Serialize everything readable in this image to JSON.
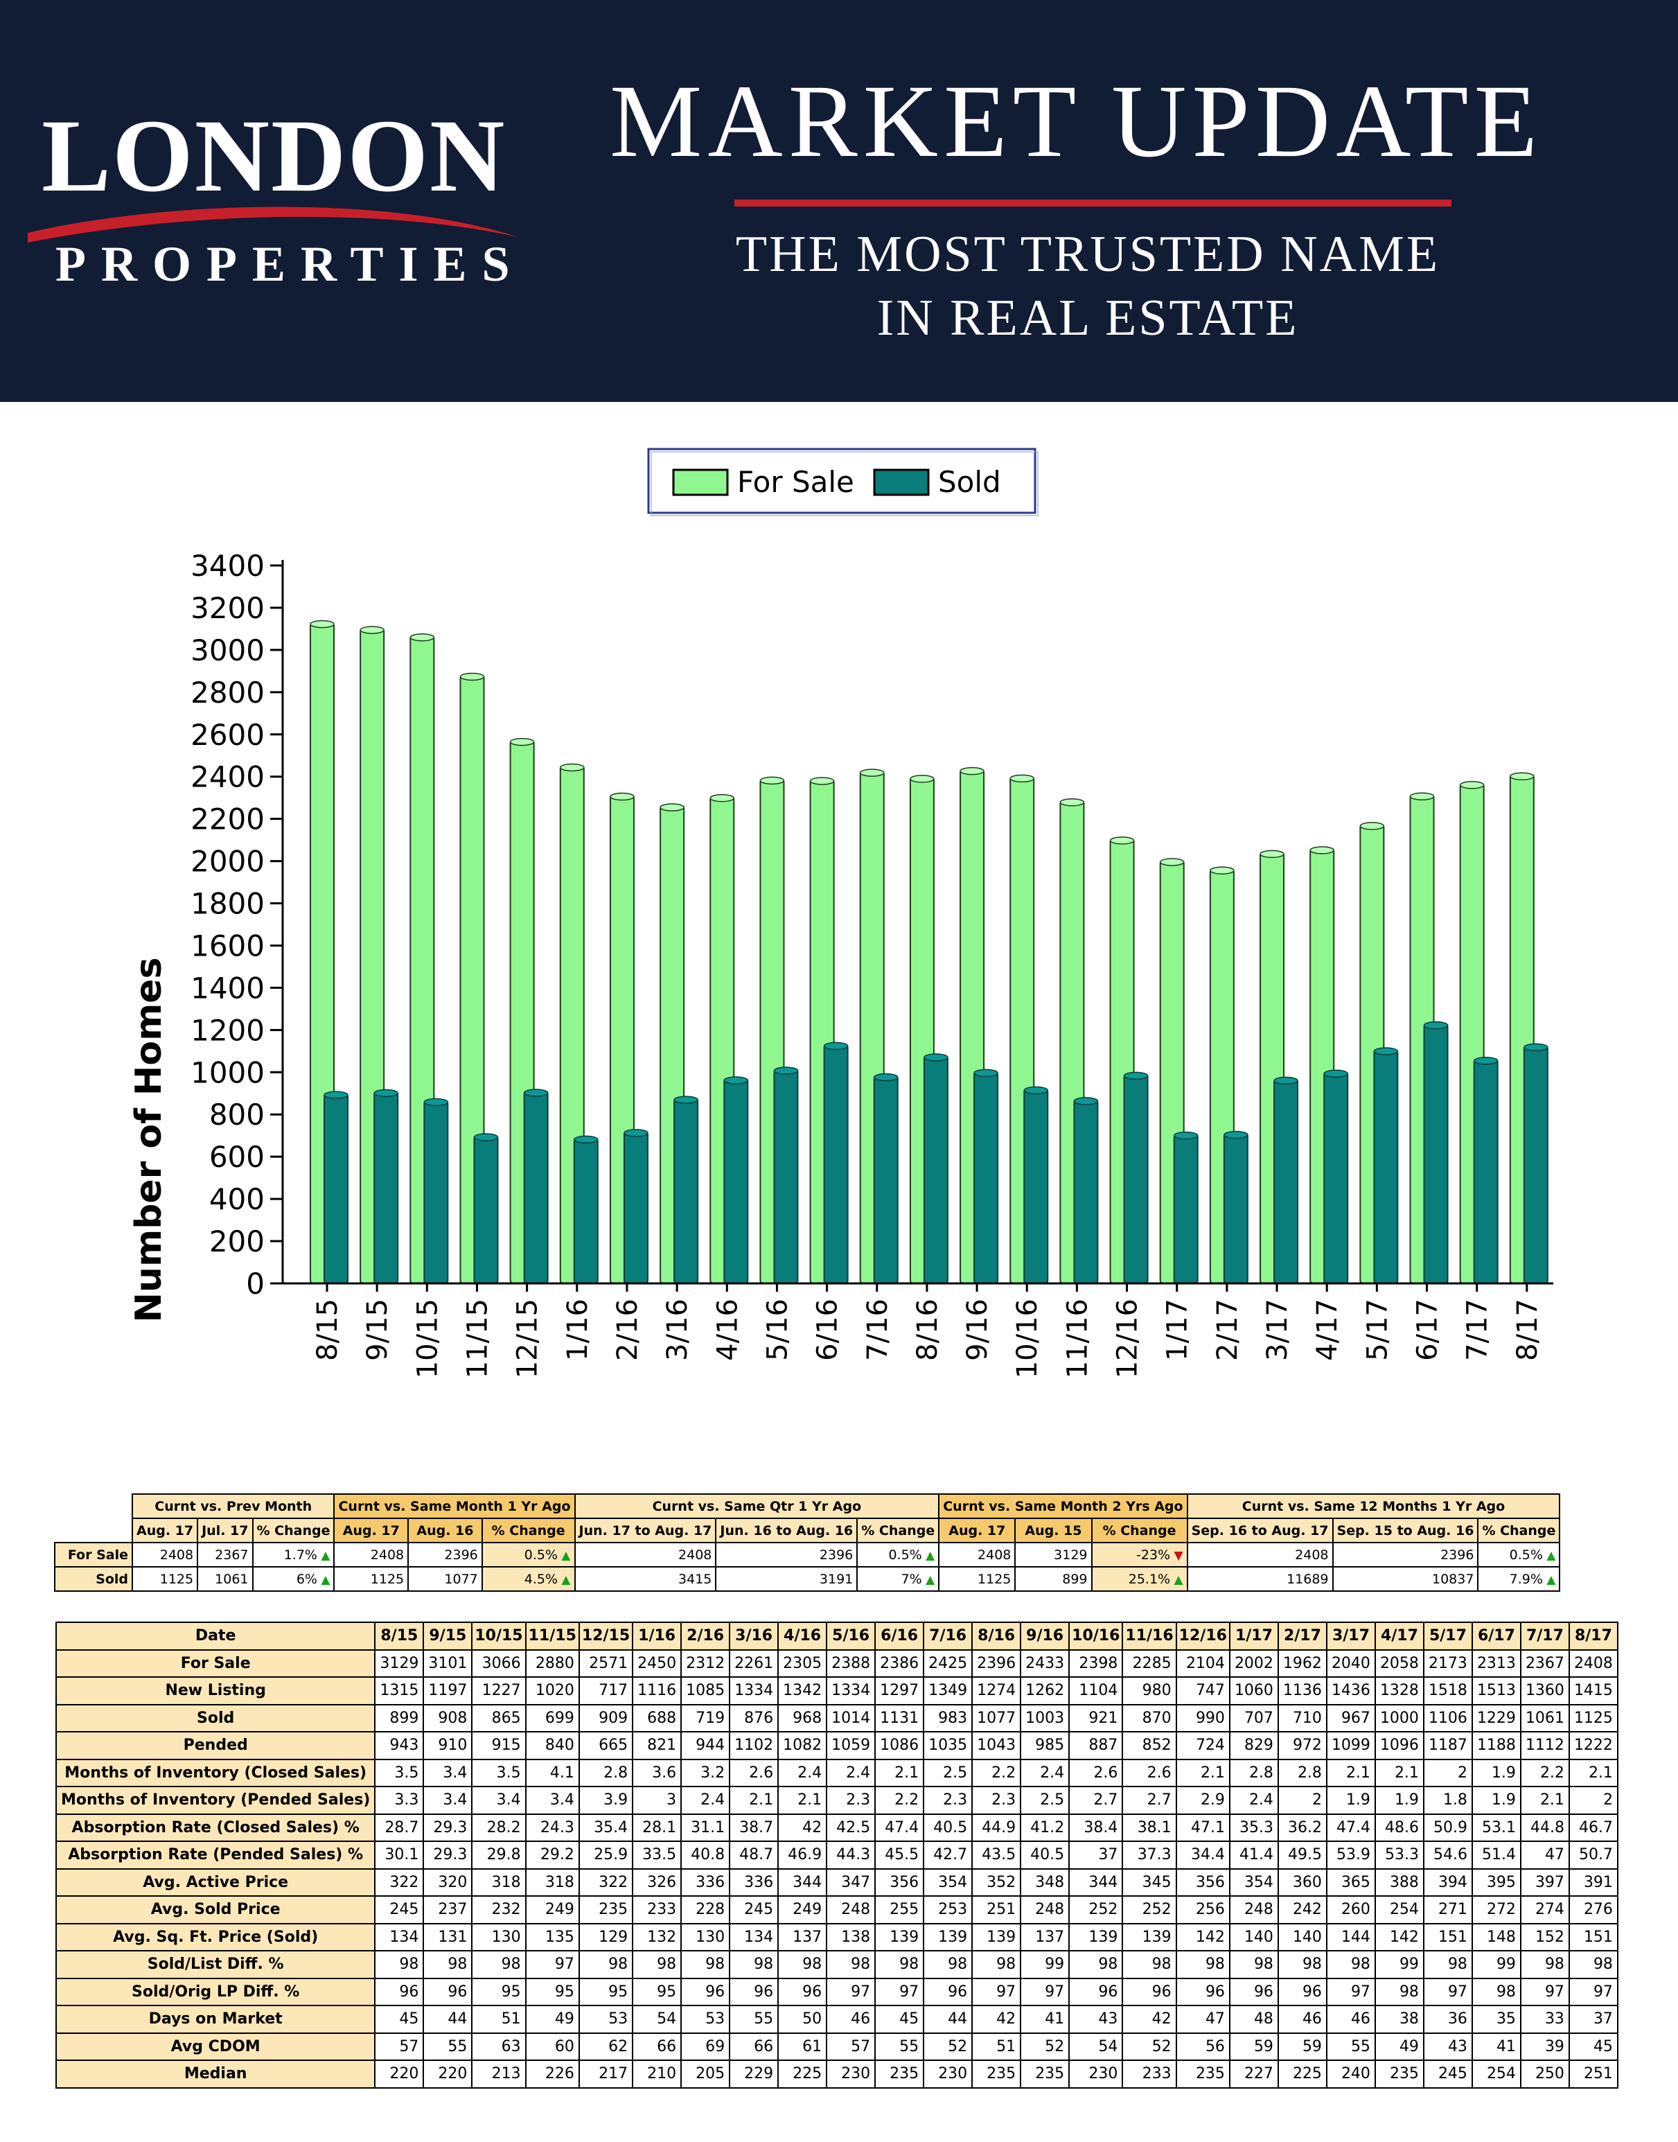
{
  "header": {
    "logo_main": "LONDON",
    "logo_sub": "PROPERTIES",
    "title": "MARKET UPDATE",
    "tagline_line1": "THE MOST TRUSTED NAME",
    "tagline_line2": "IN REAL ESTATE",
    "colors": {
      "background": "#101d35",
      "accent": "#c8202a"
    }
  },
  "chart_data": {
    "type": "bar",
    "categories": [
      "8/15",
      "9/15",
      "10/15",
      "11/15",
      "12/15",
      "1/16",
      "2/16",
      "3/16",
      "4/16",
      "5/16",
      "6/16",
      "7/16",
      "8/16",
      "9/16",
      "10/16",
      "11/16",
      "12/16",
      "1/17",
      "2/17",
      "3/17",
      "4/17",
      "5/17",
      "6/17",
      "7/17",
      "8/17"
    ],
    "series": [
      {
        "name": "For Sale",
        "color": "#90f790",
        "values": [
          3129,
          3101,
          3066,
          2880,
          2571,
          2450,
          2312,
          2261,
          2305,
          2388,
          2386,
          2425,
          2396,
          2433,
          2398,
          2285,
          2104,
          2002,
          1962,
          2040,
          2058,
          2173,
          2313,
          2367,
          2408
        ]
      },
      {
        "name": "Sold",
        "color": "#087d79",
        "values": [
          899,
          908,
          865,
          699,
          909,
          688,
          719,
          876,
          968,
          1014,
          1131,
          983,
          1077,
          1003,
          921,
          870,
          990,
          707,
          710,
          967,
          1000,
          1106,
          1229,
          1061,
          1125
        ]
      }
    ],
    "xlabel": "",
    "ylabel": "Number of Homes",
    "ylim": [
      0,
      3400
    ],
    "yticks": [
      0,
      200,
      400,
      600,
      800,
      1000,
      1200,
      1400,
      1600,
      1800,
      2000,
      2200,
      2400,
      2600,
      2800,
      3000,
      3200,
      3400
    ],
    "legend": "top-center",
    "grid": false
  },
  "summary": {
    "group_headers": [
      "Curnt vs. Prev Month",
      "Curnt vs. Same Month 1 Yr Ago",
      "Curnt vs. Same Qtr 1 Yr Ago",
      "Curnt vs. Same Month 2 Yrs Ago",
      "Curnt vs. Same 12 Months 1 Yr Ago"
    ],
    "col_headers": [
      "Aug. 17",
      "Jul. 17",
      "% Change",
      "Aug. 17",
      "Aug. 16",
      "% Change",
      "Jun. 17 to Aug. 17",
      "Jun. 16 to Aug. 16",
      "% Change",
      "Aug. 17",
      "Aug. 15",
      "% Change",
      "Sep. 16 to Aug. 17",
      "Sep. 15 to Aug. 16",
      "% Change"
    ],
    "rows": [
      {
        "label": "For Sale",
        "cells": [
          "2408",
          "2367",
          "1.7%",
          "2408",
          "2396",
          "0.5%",
          "2408",
          "2396",
          "0.5%",
          "2408",
          "3129",
          "-23%",
          "2408",
          "2396",
          "0.5%"
        ],
        "arrows": [
          "up",
          "up",
          "up",
          "down",
          "up"
        ]
      },
      {
        "label": "Sold",
        "cells": [
          "1125",
          "1061",
          "6%",
          "1125",
          "1077",
          "4.5%",
          "3415",
          "3191",
          "7%",
          "1125",
          "899",
          "25.1%",
          "11689",
          "10837",
          "7.9%"
        ],
        "arrows": [
          "up",
          "up",
          "up",
          "up",
          "up"
        ]
      }
    ]
  },
  "detail": {
    "header_label": "Date",
    "dates": [
      "8/15",
      "9/15",
      "10/15",
      "11/15",
      "12/15",
      "1/16",
      "2/16",
      "3/16",
      "4/16",
      "5/16",
      "6/16",
      "7/16",
      "8/16",
      "9/16",
      "10/16",
      "11/16",
      "12/16",
      "1/17",
      "2/17",
      "3/17",
      "4/17",
      "5/17",
      "6/17",
      "7/17",
      "8/17"
    ],
    "rows": [
      {
        "label": "For Sale",
        "values": [
          "3129",
          "3101",
          "3066",
          "2880",
          "2571",
          "2450",
          "2312",
          "2261",
          "2305",
          "2388",
          "2386",
          "2425",
          "2396",
          "2433",
          "2398",
          "2285",
          "2104",
          "2002",
          "1962",
          "2040",
          "2058",
          "2173",
          "2313",
          "2367",
          "2408"
        ]
      },
      {
        "label": "New Listing",
        "values": [
          "1315",
          "1197",
          "1227",
          "1020",
          "717",
          "1116",
          "1085",
          "1334",
          "1342",
          "1334",
          "1297",
          "1349",
          "1274",
          "1262",
          "1104",
          "980",
          "747",
          "1060",
          "1136",
          "1436",
          "1328",
          "1518",
          "1513",
          "1360",
          "1415"
        ]
      },
      {
        "label": "Sold",
        "values": [
          "899",
          "908",
          "865",
          "699",
          "909",
          "688",
          "719",
          "876",
          "968",
          "1014",
          "1131",
          "983",
          "1077",
          "1003",
          "921",
          "870",
          "990",
          "707",
          "710",
          "967",
          "1000",
          "1106",
          "1229",
          "1061",
          "1125"
        ]
      },
      {
        "label": "Pended",
        "values": [
          "943",
          "910",
          "915",
          "840",
          "665",
          "821",
          "944",
          "1102",
          "1082",
          "1059",
          "1086",
          "1035",
          "1043",
          "985",
          "887",
          "852",
          "724",
          "829",
          "972",
          "1099",
          "1096",
          "1187",
          "1188",
          "1112",
          "1222"
        ]
      },
      {
        "label": "Months of Inventory (Closed Sales)",
        "values": [
          "3.5",
          "3.4",
          "3.5",
          "4.1",
          "2.8",
          "3.6",
          "3.2",
          "2.6",
          "2.4",
          "2.4",
          "2.1",
          "2.5",
          "2.2",
          "2.4",
          "2.6",
          "2.6",
          "2.1",
          "2.8",
          "2.8",
          "2.1",
          "2.1",
          "2",
          "1.9",
          "2.2",
          "2.1"
        ]
      },
      {
        "label": "Months of Inventory (Pended Sales)",
        "values": [
          "3.3",
          "3.4",
          "3.4",
          "3.4",
          "3.9",
          "3",
          "2.4",
          "2.1",
          "2.1",
          "2.3",
          "2.2",
          "2.3",
          "2.3",
          "2.5",
          "2.7",
          "2.7",
          "2.9",
          "2.4",
          "2",
          "1.9",
          "1.9",
          "1.8",
          "1.9",
          "2.1",
          "2"
        ]
      },
      {
        "label": "Absorption Rate (Closed Sales) %",
        "values": [
          "28.7",
          "29.3",
          "28.2",
          "24.3",
          "35.4",
          "28.1",
          "31.1",
          "38.7",
          "42",
          "42.5",
          "47.4",
          "40.5",
          "44.9",
          "41.2",
          "38.4",
          "38.1",
          "47.1",
          "35.3",
          "36.2",
          "47.4",
          "48.6",
          "50.9",
          "53.1",
          "44.8",
          "46.7"
        ]
      },
      {
        "label": "Absorption Rate (Pended Sales) %",
        "values": [
          "30.1",
          "29.3",
          "29.8",
          "29.2",
          "25.9",
          "33.5",
          "40.8",
          "48.7",
          "46.9",
          "44.3",
          "45.5",
          "42.7",
          "43.5",
          "40.5",
          "37",
          "37.3",
          "34.4",
          "41.4",
          "49.5",
          "53.9",
          "53.3",
          "54.6",
          "51.4",
          "47",
          "50.7"
        ]
      },
      {
        "label": "Avg. Active Price",
        "values": [
          "322",
          "320",
          "318",
          "318",
          "322",
          "326",
          "336",
          "336",
          "344",
          "347",
          "356",
          "354",
          "352",
          "348",
          "344",
          "345",
          "356",
          "354",
          "360",
          "365",
          "388",
          "394",
          "395",
          "397",
          "391"
        ]
      },
      {
        "label": "Avg. Sold Price",
        "values": [
          "245",
          "237",
          "232",
          "249",
          "235",
          "233",
          "228",
          "245",
          "249",
          "248",
          "255",
          "253",
          "251",
          "248",
          "252",
          "252",
          "256",
          "248",
          "242",
          "260",
          "254",
          "271",
          "272",
          "274",
          "276"
        ]
      },
      {
        "label": "Avg. Sq. Ft. Price (Sold)",
        "values": [
          "134",
          "131",
          "130",
          "135",
          "129",
          "132",
          "130",
          "134",
          "137",
          "138",
          "139",
          "139",
          "139",
          "137",
          "139",
          "139",
          "142",
          "140",
          "140",
          "144",
          "142",
          "151",
          "148",
          "152",
          "151"
        ]
      },
      {
        "label": "Sold/List Diff. %",
        "values": [
          "98",
          "98",
          "98",
          "97",
          "98",
          "98",
          "98",
          "98",
          "98",
          "98",
          "98",
          "98",
          "98",
          "99",
          "98",
          "98",
          "98",
          "98",
          "98",
          "98",
          "99",
          "98",
          "99",
          "98",
          "98"
        ]
      },
      {
        "label": "Sold/Orig LP Diff. %",
        "values": [
          "96",
          "96",
          "95",
          "95",
          "95",
          "95",
          "96",
          "96",
          "96",
          "97",
          "97",
          "96",
          "97",
          "97",
          "96",
          "96",
          "96",
          "96",
          "96",
          "97",
          "98",
          "97",
          "98",
          "97",
          "97"
        ]
      },
      {
        "label": "Days on Market",
        "values": [
          "45",
          "44",
          "51",
          "49",
          "53",
          "54",
          "53",
          "55",
          "50",
          "46",
          "45",
          "44",
          "42",
          "41",
          "43",
          "42",
          "47",
          "48",
          "46",
          "46",
          "38",
          "36",
          "35",
          "33",
          "37"
        ]
      },
      {
        "label": "Avg CDOM",
        "values": [
          "57",
          "55",
          "63",
          "60",
          "62",
          "66",
          "69",
          "66",
          "61",
          "57",
          "55",
          "52",
          "51",
          "52",
          "54",
          "52",
          "56",
          "59",
          "59",
          "55",
          "49",
          "43",
          "41",
          "39",
          "45"
        ]
      },
      {
        "label": "Median",
        "values": [
          "220",
          "220",
          "213",
          "226",
          "217",
          "210",
          "205",
          "229",
          "225",
          "230",
          "235",
          "230",
          "235",
          "235",
          "230",
          "233",
          "235",
          "227",
          "225",
          "240",
          "235",
          "245",
          "254",
          "250",
          "251"
        ]
      }
    ]
  }
}
